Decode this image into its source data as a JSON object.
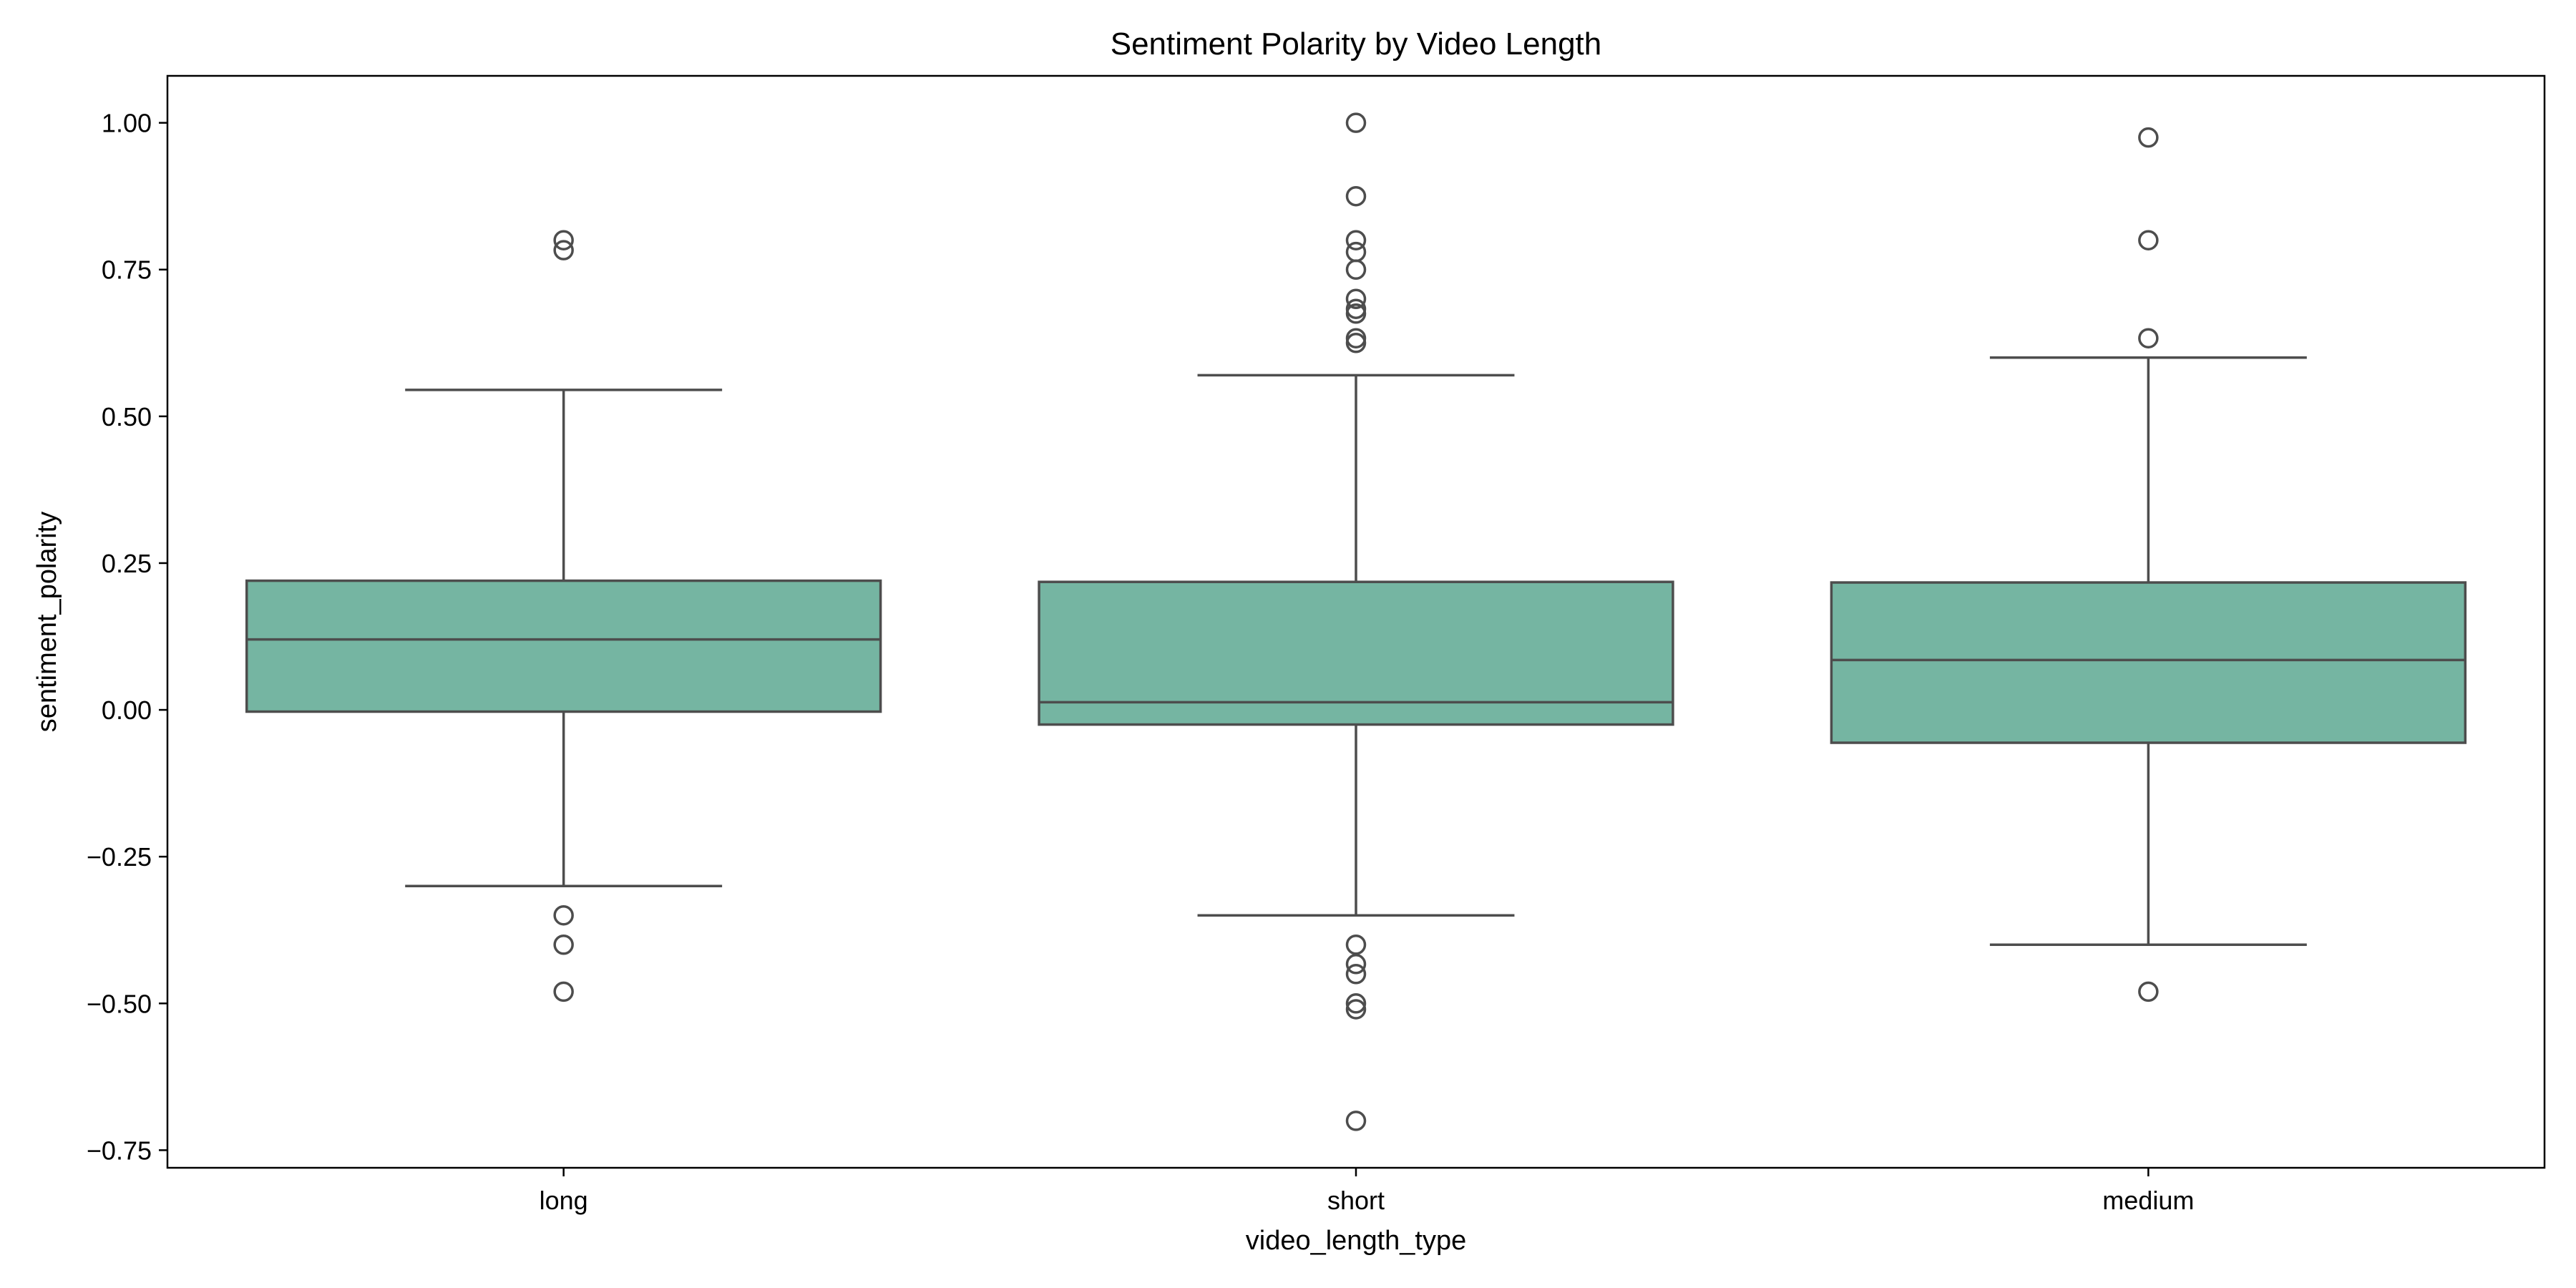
{
  "chart_data": {
    "type": "box",
    "title": "Sentiment Polarity by Video Length",
    "xlabel": "video_length_type",
    "ylabel": "sentiment_polarity",
    "ylim": [
      -0.78,
      1.08
    ],
    "yticks": [
      -0.75,
      -0.5,
      -0.25,
      0.0,
      0.25,
      0.5,
      0.75,
      1.0
    ],
    "ytick_labels": [
      "−0.75",
      "−0.50",
      "−0.25",
      "0.00",
      "0.25",
      "0.50",
      "0.75",
      "1.00"
    ],
    "categories": [
      "long",
      "short",
      "medium"
    ],
    "box_color": "#75b5a2",
    "line_color": "#4d4d4d",
    "boxes": [
      {
        "category": "long",
        "whisker_low": -0.3,
        "q1": -0.003,
        "median": 0.12,
        "q3": 0.22,
        "whisker_high": 0.545,
        "outliers": [
          0.8,
          0.783,
          -0.35,
          -0.4,
          -0.48
        ]
      },
      {
        "category": "short",
        "whisker_low": -0.35,
        "q1": -0.025,
        "median": 0.013,
        "q3": 0.218,
        "whisker_high": 0.57,
        "outliers": [
          1.0,
          0.875,
          0.8,
          0.78,
          0.75,
          0.7,
          0.683,
          0.675,
          0.633,
          0.625,
          -0.4,
          -0.433,
          -0.45,
          -0.5,
          -0.51,
          -0.7
        ]
      },
      {
        "category": "medium",
        "whisker_low": -0.4,
        "q1": -0.056,
        "median": 0.085,
        "q3": 0.217,
        "whisker_high": 0.6,
        "outliers": [
          0.975,
          0.8,
          0.633,
          -0.48
        ]
      }
    ]
  }
}
